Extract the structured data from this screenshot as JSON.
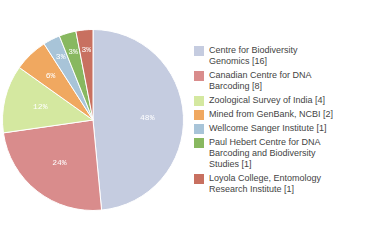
{
  "chart_data": {
    "type": "pie",
    "categories": [
      "Centre for Biodiversity\nGenomics [16]",
      "Canadian Centre for DNA\nBarcoding [8]",
      "Zoological Survey of India [4]",
      "Mined from GenBank, NCBI [2]",
      "Wellcome Sanger Institute [1]",
      "Paul Hebert Centre for DNA\nBarcoding and Biodiversity\nStudies [1]",
      "Loyola College, Entomology\nResearch Institute [1]"
    ],
    "values": [
      48,
      24,
      12,
      6,
      3,
      3,
      3
    ],
    "value_labels": [
      "48%",
      "24%",
      "12%",
      "6%",
      "3%",
      "3%",
      "3%"
    ],
    "colors": [
      "#c5cce0",
      "#d98c8c",
      "#d4e8a0",
      "#f0a860",
      "#a8c4d8",
      "#88b860",
      "#c87060"
    ],
    "data_labels": true,
    "legend": "right"
  }
}
